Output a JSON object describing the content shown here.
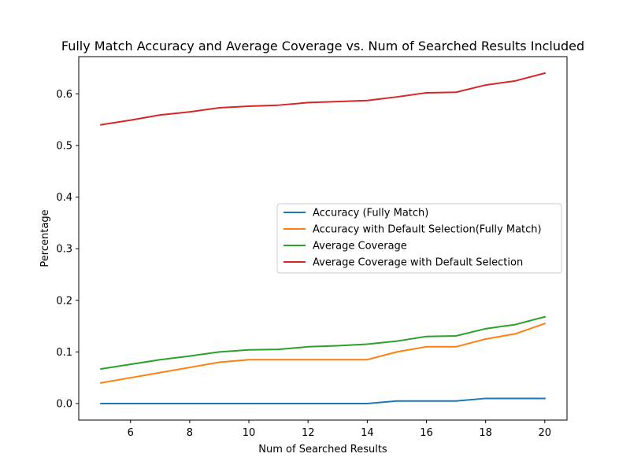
{
  "chart_data": {
    "type": "line",
    "title": "Fully Match Accuracy and Average Coverage vs. Num of Searched Results Included",
    "xlabel": "Num of Searched Results",
    "ylabel": "Percentage",
    "xlim": [
      4.25,
      20.75
    ],
    "ylim": [
      -0.032,
      0.672
    ],
    "xticks": [
      6,
      8,
      10,
      12,
      14,
      16,
      18,
      20
    ],
    "yticks": [
      0.0,
      0.1,
      0.2,
      0.3,
      0.4,
      0.5,
      0.6
    ],
    "xtick_labels": [
      "6",
      "8",
      "10",
      "12",
      "14",
      "16",
      "18",
      "20"
    ],
    "ytick_labels": [
      "0.0",
      "0.1",
      "0.2",
      "0.3",
      "0.4",
      "0.5",
      "0.6"
    ],
    "grid": false,
    "legend_position": "center-right",
    "x": [
      5,
      6,
      7,
      8,
      9,
      10,
      11,
      12,
      13,
      14,
      15,
      16,
      17,
      18,
      19,
      20
    ],
    "series": [
      {
        "name": "Accuracy (Fully Match)",
        "color": "#1f77b4",
        "values": [
          0.0,
          0.0,
          0.0,
          0.0,
          0.0,
          0.0,
          0.0,
          0.0,
          0.0,
          0.0,
          0.005,
          0.005,
          0.005,
          0.01,
          0.01,
          0.01
        ]
      },
      {
        "name": "Accuracy with Default Selection(Fully Match)",
        "color": "#ff7f0e",
        "values": [
          0.04,
          0.05,
          0.06,
          0.07,
          0.08,
          0.085,
          0.085,
          0.085,
          0.085,
          0.085,
          0.1,
          0.11,
          0.11,
          0.125,
          0.135,
          0.155
        ]
      },
      {
        "name": "Average Coverage",
        "color": "#2ca02c",
        "values": [
          0.067,
          0.076,
          0.085,
          0.092,
          0.1,
          0.104,
          0.105,
          0.11,
          0.112,
          0.115,
          0.121,
          0.13,
          0.131,
          0.145,
          0.153,
          0.168
        ]
      },
      {
        "name": "Average Coverage with Default Selection",
        "color": "#d62728",
        "values": [
          0.54,
          0.549,
          0.559,
          0.565,
          0.573,
          0.576,
          0.578,
          0.583,
          0.585,
          0.587,
          0.594,
          0.602,
          0.603,
          0.617,
          0.625,
          0.64
        ]
      }
    ]
  }
}
